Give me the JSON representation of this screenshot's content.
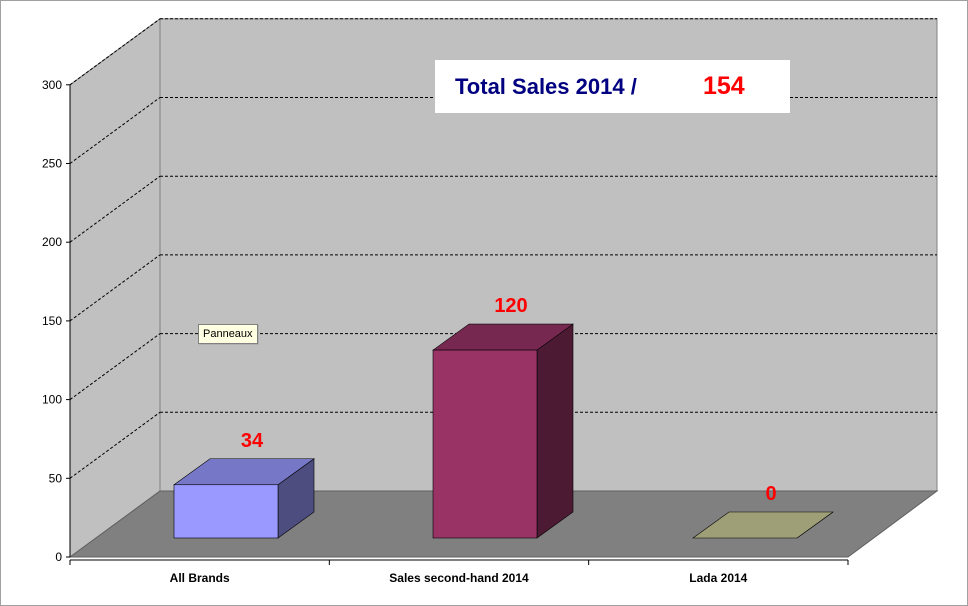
{
  "chart_data": {
    "type": "bar",
    "categories": [
      "All Brands",
      "Sales second-hand 2014",
      "Lada 2014"
    ],
    "values": [
      34,
      120,
      0
    ],
    "value_labels": [
      "34",
      "120",
      "0"
    ],
    "ylim": [
      0,
      300
    ],
    "yticks": [
      "0",
      "50",
      "100",
      "150",
      "200",
      "250",
      "300"
    ],
    "grid": true,
    "three_d": true,
    "colors": {
      "bar_1": "#9999ff",
      "bar_2": "#993366",
      "bar_3": "#cccc99",
      "wall": "#c0c0c0",
      "floor": "#808080",
      "value_label": "#ff0000",
      "title_label": "#000080"
    }
  },
  "overlay": {
    "total_label": "Total Sales 2014 /",
    "total_value": "154",
    "tooltip": "Panneaux"
  }
}
